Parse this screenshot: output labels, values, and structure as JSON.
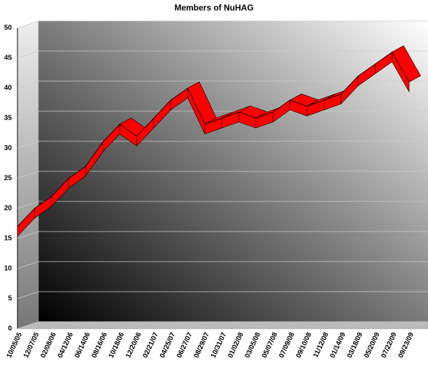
{
  "chart_data": {
    "type": "line",
    "title": "Members of NuHAG",
    "categories": [
      "10/05/05",
      "12/07/05",
      "02/08/06",
      "04/12/06",
      "06/14/06",
      "08/16/06",
      "10/18/06",
      "12/20/06",
      "02/21/07",
      "04/25/07",
      "06/27/07",
      "08/29/07",
      "10/31/07",
      "01/02/08",
      "03/05/08",
      "05/07/08",
      "07/09/08",
      "09/10/08",
      "11/12/08",
      "01/14/09",
      "03/18/09",
      "05/20/09",
      "07/22/09",
      "09/23/09"
    ],
    "series": [
      {
        "name": "Members",
        "color": "#ff0000",
        "values": [
          17,
          20,
          22,
          25,
          27,
          31,
          34,
          32,
          35,
          38,
          40,
          34,
          35,
          36,
          35,
          36,
          38,
          37,
          38,
          39,
          42,
          44,
          46,
          41
        ]
      }
    ],
    "ylim": [
      0,
      50
    ],
    "yticks": [
      0,
      5,
      10,
      15,
      20,
      25,
      30,
      35,
      40,
      45,
      50
    ],
    "grid": true
  }
}
